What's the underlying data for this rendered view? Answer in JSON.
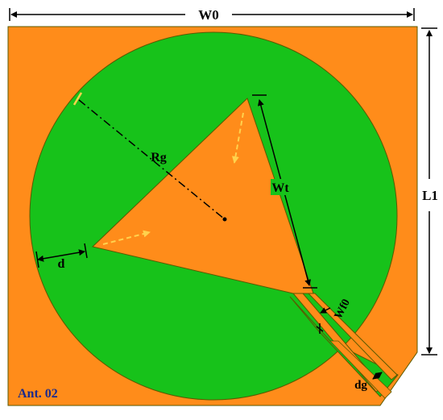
{
  "colors": {
    "substrate": "#ff8c1a",
    "ground": "#17c21a",
    "outline": "#5a5a00",
    "dimension": "#000000",
    "arrow": "#ffd24d",
    "antenna_label": "#1a2a8c"
  },
  "labels": {
    "width_total": "W0",
    "length_total": "L1",
    "ground_radius": "Rg",
    "triangle_side": "Wt",
    "gap_d": "d",
    "feed_width": "Wf0",
    "feed_gap": "dg",
    "antenna_name": "Ant. 02"
  }
}
